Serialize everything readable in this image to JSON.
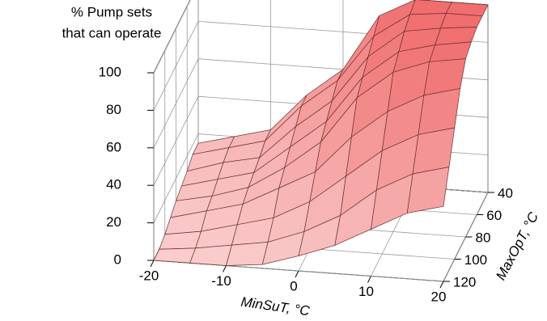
{
  "chart_data": {
    "type": "surface",
    "z_label": [
      "% Pump sets",
      "that can operate"
    ],
    "x_label": "MinSuT, °C",
    "y_label": "MaxOpT, °C",
    "x": [
      -20,
      -15,
      -10,
      -5,
      0,
      5,
      10,
      15,
      20
    ],
    "y": [
      40,
      50,
      60,
      70,
      80,
      90,
      100,
      110,
      120
    ],
    "z": [
      [
        15,
        20,
        25,
        45,
        60,
        90,
        100,
        100,
        100
      ],
      [
        15,
        20,
        25,
        45,
        60,
        85,
        98,
        100,
        100
      ],
      [
        12,
        18,
        22,
        40,
        55,
        80,
        95,
        98,
        100
      ],
      [
        10,
        15,
        20,
        35,
        50,
        75,
        90,
        95,
        98
      ],
      [
        8,
        12,
        18,
        30,
        45,
        70,
        85,
        92,
        95
      ],
      [
        5,
        10,
        15,
        25,
        35,
        55,
        70,
        80,
        85
      ],
      [
        2,
        5,
        10,
        15,
        25,
        40,
        55,
        65,
        70
      ],
      [
        0,
        2,
        5,
        8,
        15,
        25,
        40,
        50,
        55
      ],
      [
        0,
        0,
        0,
        2,
        8,
        15,
        25,
        35,
        40
      ]
    ],
    "xlim": [
      -20,
      20
    ],
    "xticks": [
      -20,
      -10,
      0,
      10,
      20
    ],
    "ylim": [
      40,
      120
    ],
    "yticks": [
      40,
      60,
      80,
      100,
      120
    ],
    "zlim": [
      0,
      100
    ],
    "zticks": [
      0,
      20,
      40,
      60,
      80,
      100
    ],
    "color": "#f06e6e",
    "grid": true
  }
}
